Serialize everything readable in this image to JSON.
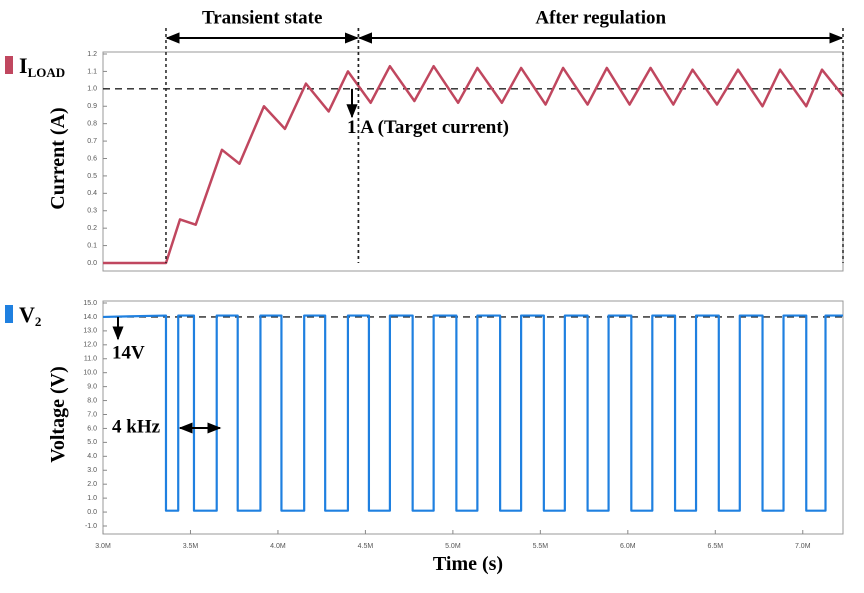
{
  "chart_data": [
    {
      "type": "line",
      "ylabel": "Current (A)",
      "xlim": [
        3.0,
        7.23
      ],
      "ylim": [
        0,
        1.2
      ],
      "yticks": [
        {
          "value": 0,
          "label": "0.0"
        },
        0.1,
        0.2,
        0.3,
        0.4,
        0.5,
        0.6,
        0.7,
        0.8,
        0.9,
        {
          "value": 1,
          "label": "1.0"
        },
        1.1,
        1.2
      ],
      "x": [
        3.0,
        3.36,
        3.44,
        3.53,
        3.68,
        3.78,
        3.92,
        4.04,
        4.16,
        4.29,
        4.4,
        4.53,
        4.64,
        4.78,
        4.89,
        5.03,
        5.14,
        5.28,
        5.39,
        5.53,
        5.63,
        5.77,
        5.88,
        6.01,
        6.13,
        6.26,
        6.37,
        6.51,
        6.63,
        6.77,
        6.87,
        7.02,
        7.11,
        7.23
      ],
      "series": [
        {
          "name": "I",
          "subscript": "LOAD",
          "color": "#c0475f",
          "values": [
            0,
            0,
            0.25,
            0.22,
            0.65,
            0.57,
            0.9,
            0.77,
            1.03,
            0.87,
            1.1,
            0.92,
            1.13,
            0.93,
            1.13,
            0.92,
            1.12,
            0.92,
            1.12,
            0.91,
            1.12,
            0.91,
            1.12,
            0.91,
            1.12,
            0.91,
            1.11,
            0.91,
            1.11,
            0.9,
            1.11,
            0.9,
            1.11,
            0.96
          ]
        }
      ],
      "reference_line": 1.0,
      "annotations": [
        {
          "text": "Transient state",
          "x": [
            3.36,
            4.46
          ]
        },
        {
          "text": "After regulation",
          "x": [
            4.46,
            7.23
          ]
        },
        {
          "text": "1 A (Target current)"
        }
      ]
    },
    {
      "type": "line",
      "xlabel": "Time (s)",
      "ylabel": "Voltage (V)",
      "xlim": [
        3.0,
        7.23
      ],
      "ylim": [
        -1,
        15
      ],
      "xticks": [
        {
          "value": 3.0,
          "label": "3.0M"
        },
        {
          "value": 3.5,
          "label": "3.5M"
        },
        {
          "value": 4.0,
          "label": "4.0M"
        },
        {
          "value": 4.5,
          "label": "4.5M"
        },
        {
          "value": 5.0,
          "label": "5.0M"
        },
        {
          "value": 5.5,
          "label": "5.5M"
        },
        {
          "value": 6.0,
          "label": "6.0M"
        },
        {
          "value": 6.5,
          "label": "6.5M"
        },
        {
          "value": 7.0,
          "label": "7.0M"
        }
      ],
      "yticks": [
        {
          "value": -1,
          "label": "-1.0"
        },
        {
          "value": 0,
          "label": "0.0"
        },
        {
          "value": 1,
          "label": "1.0"
        },
        {
          "value": 2,
          "label": "2.0"
        },
        {
          "value": 3,
          "label": "3.0"
        },
        {
          "value": 4,
          "label": "4.0"
        },
        {
          "value": 5,
          "label": "5.0"
        },
        {
          "value": 6,
          "label": "6.0"
        },
        {
          "value": 7,
          "label": "7.0"
        },
        {
          "value": 8,
          "label": "8.0"
        },
        {
          "value": 9,
          "label": "9.0"
        },
        {
          "value": 10,
          "label": "10.0"
        },
        {
          "value": 11,
          "label": "11.0"
        },
        {
          "value": 12,
          "label": "12.0"
        },
        {
          "value": 13,
          "label": "13.0"
        },
        {
          "value": 14,
          "label": "14.0"
        },
        {
          "value": 15,
          "label": "15.0"
        }
      ],
      "x": [
        3.0,
        3.36,
        3.36,
        3.43,
        3.43,
        3.52,
        3.52,
        3.65,
        3.65,
        3.77,
        3.77,
        3.9,
        3.9,
        4.02,
        4.02,
        4.15,
        4.15,
        4.27,
        4.27,
        4.4,
        4.4,
        4.52,
        4.52,
        4.64,
        4.64,
        4.77,
        4.77,
        4.89,
        4.89,
        5.02,
        5.02,
        5.14,
        5.14,
        5.27,
        5.27,
        5.39,
        5.39,
        5.52,
        5.52,
        5.64,
        5.64,
        5.77,
        5.77,
        5.89,
        5.89,
        6.02,
        6.02,
        6.14,
        6.14,
        6.27,
        6.27,
        6.39,
        6.39,
        6.52,
        6.52,
        6.64,
        6.64,
        6.77,
        6.77,
        6.89,
        6.89,
        7.02,
        7.02,
        7.13,
        7.13,
        7.23
      ],
      "series": [
        {
          "name": "V",
          "subscript": "2",
          "color": "#1f80e0",
          "values": [
            14.0,
            14.1,
            0.1,
            0.1,
            14.1,
            14.1,
            0.1,
            0.1,
            14.1,
            14.1,
            0.1,
            0.1,
            14.1,
            14.1,
            0.1,
            0.1,
            14.1,
            14.1,
            0.1,
            0.1,
            14.1,
            14.1,
            0.1,
            0.1,
            14.1,
            14.1,
            0.1,
            0.1,
            14.1,
            14.1,
            0.1,
            0.1,
            14.1,
            14.1,
            0.1,
            0.1,
            14.1,
            14.1,
            0.1,
            0.1,
            14.1,
            14.1,
            0.1,
            0.1,
            14.1,
            14.1,
            0.1,
            0.1,
            14.1,
            14.1,
            0.1,
            0.1,
            14.1,
            14.1,
            0.1,
            0.1,
            14.1,
            14.1,
            0.1,
            0.1,
            14.1,
            14.1,
            0.1,
            0.1,
            14.1,
            14.1
          ]
        }
      ],
      "reference_line": 14,
      "annotations": [
        {
          "text": "14V"
        },
        {
          "text": "4 kHz"
        }
      ]
    }
  ]
}
